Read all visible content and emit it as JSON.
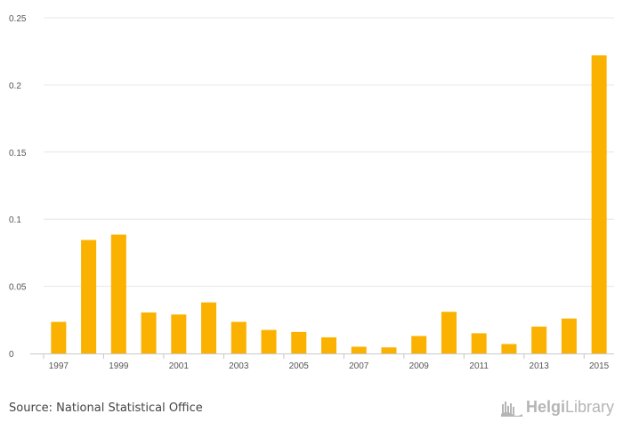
{
  "chart_data": {
    "type": "bar",
    "categories": [
      "1997",
      "1998",
      "1999",
      "2000",
      "2001",
      "2002",
      "2003",
      "2004",
      "2005",
      "2006",
      "2007",
      "2008",
      "2009",
      "2010",
      "2011",
      "2012",
      "2013",
      "2014",
      "2015"
    ],
    "values": [
      0.0235,
      0.0845,
      0.0885,
      0.0305,
      0.029,
      0.038,
      0.0235,
      0.0175,
      0.016,
      0.012,
      0.005,
      0.0045,
      0.013,
      0.031,
      0.015,
      0.007,
      0.02,
      0.026,
      0.222
    ],
    "x_tick_labels": [
      "1997",
      "1999",
      "2001",
      "2003",
      "2005",
      "2007",
      "2009",
      "2011",
      "2013",
      "2015"
    ],
    "y_ticks": [
      0,
      0.05,
      0.1,
      0.15,
      0.2,
      0.25
    ],
    "y_tick_labels": [
      "0",
      "0.05",
      "0.1",
      "0.15",
      "0.2",
      "0.25"
    ],
    "ylim": [
      0,
      0.25
    ],
    "title": "",
    "xlabel": "",
    "ylabel": "",
    "grid": true,
    "bar_color": "#FBB100"
  },
  "footer": {
    "source": "Source: National Statistical Office",
    "logo_bold": "Helgi",
    "logo_light": "Library"
  }
}
